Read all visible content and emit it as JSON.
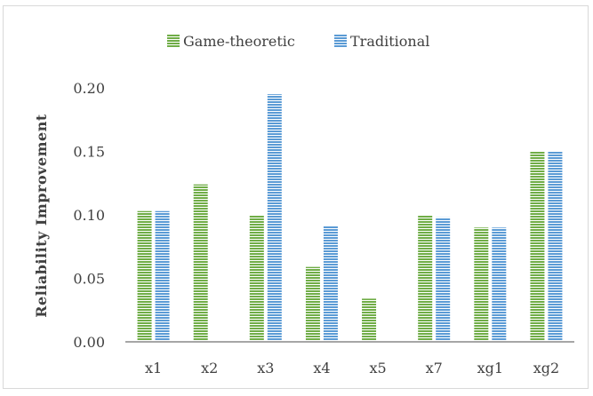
{
  "chart_data": {
    "type": "bar",
    "title": "",
    "xlabel": "",
    "ylabel": "Reliability Improvement",
    "categories": [
      "x1",
      "x2",
      "x3",
      "x4",
      "x5",
      "x7",
      "xg1",
      "xg2"
    ],
    "series": [
      {
        "name": "Game-theoretic",
        "color": "#70ad47",
        "values": [
          0.103,
          0.124,
          0.1,
          0.059,
          0.034,
          0.1,
          0.09,
          0.15
        ]
      },
      {
        "name": "Traditional",
        "color": "#5b9bd5",
        "values": [
          0.103,
          0.0,
          0.195,
          0.091,
          0.0,
          0.098,
          0.09,
          0.15
        ]
      }
    ],
    "ylim": [
      0,
      0.2
    ],
    "yticks": [
      "0.00",
      "0.05",
      "0.10",
      "0.15",
      "0.20"
    ],
    "grid": false,
    "legend": "top-center",
    "bar_pattern": "horizontal-stripes"
  }
}
